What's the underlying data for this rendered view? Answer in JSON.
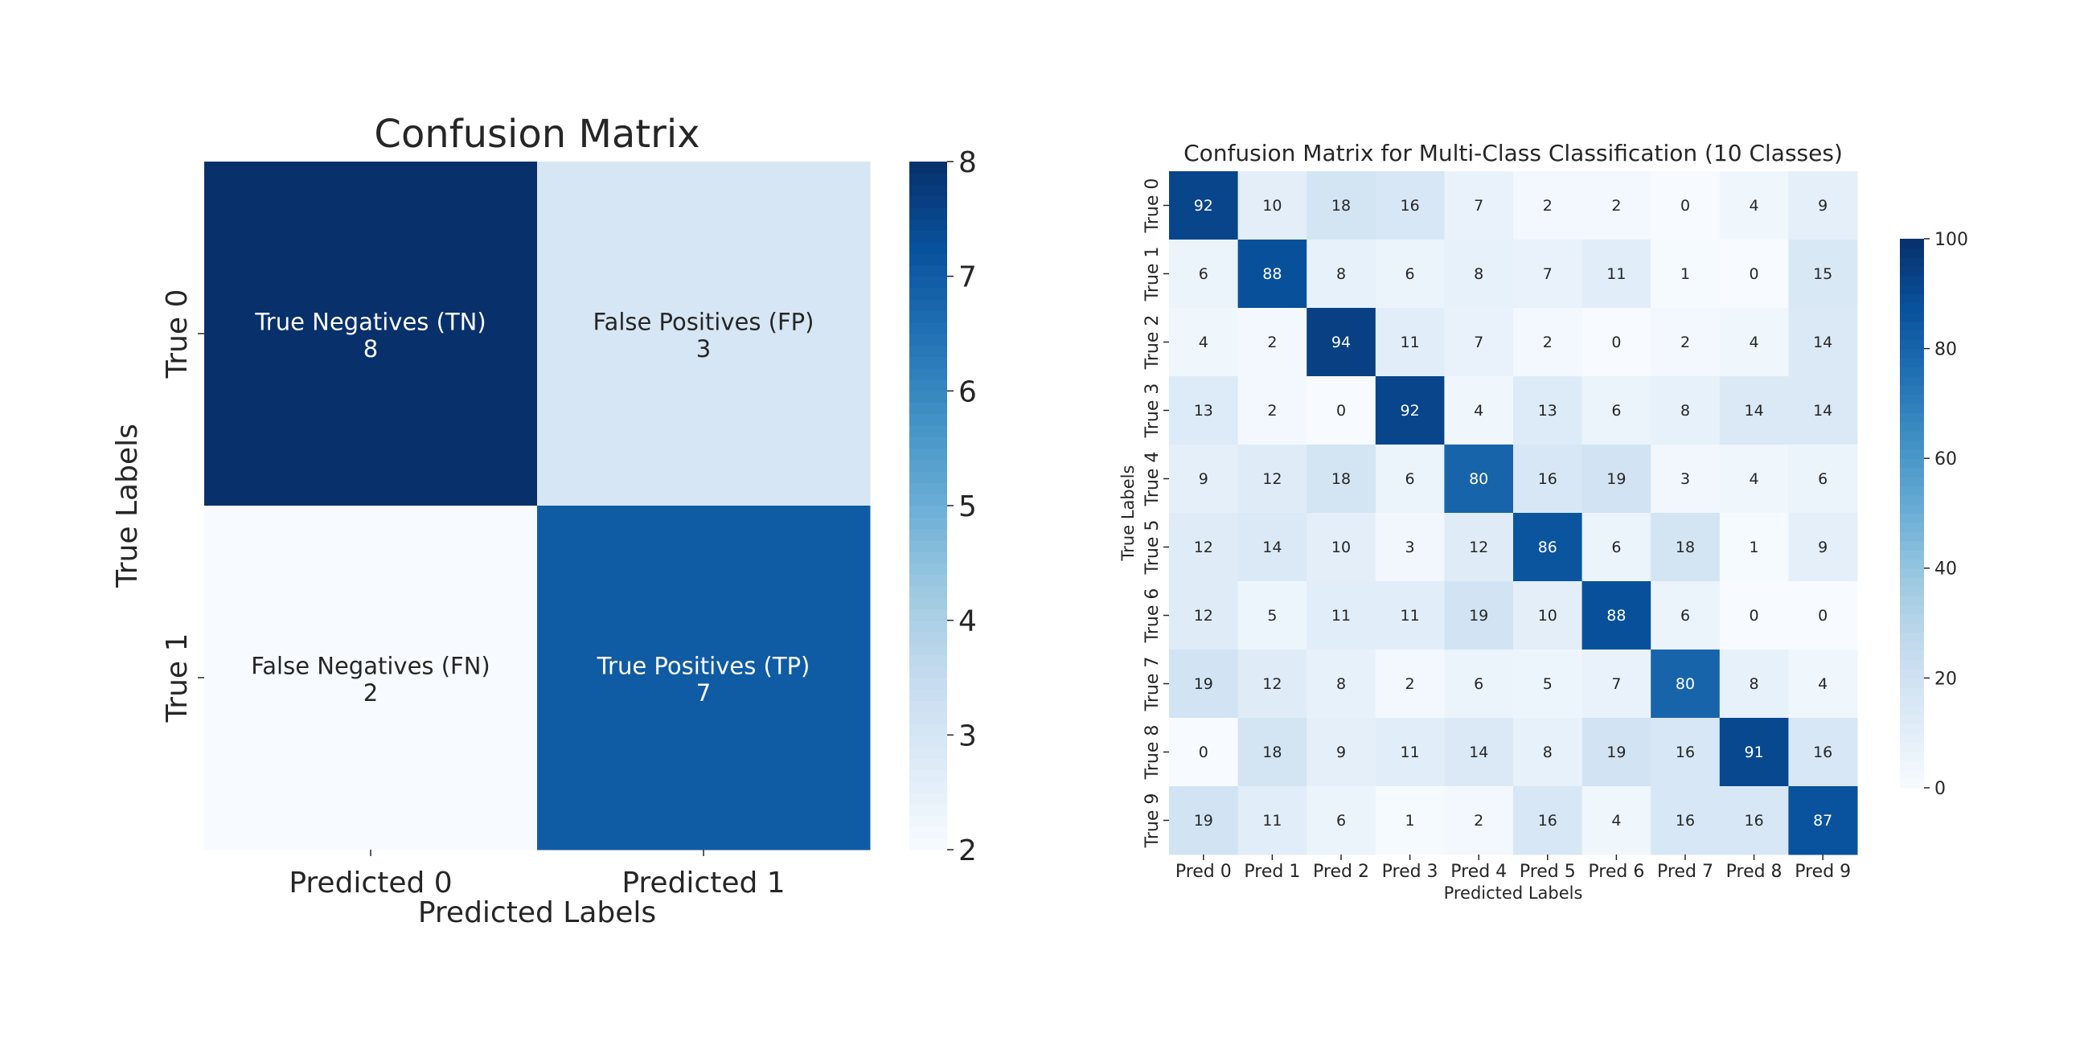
{
  "chart_data": [
    {
      "type": "heatmap",
      "title": "Confusion Matrix",
      "xlabel": "Predicted Labels",
      "ylabel": "True Labels",
      "x_categories": [
        "Predicted 0",
        "Predicted 1"
      ],
      "y_categories": [
        "True 0",
        "True 1"
      ],
      "values": [
        [
          8,
          3
        ],
        [
          2,
          7
        ]
      ],
      "annotations": [
        [
          "True Negatives (TN)\n8",
          "False Positives (FP)\n3"
        ],
        [
          "False Negatives (FN)\n2",
          "True Positives (TP)\n7"
        ]
      ],
      "colormap": "Blues",
      "colorbar": {
        "range": [
          2,
          8
        ],
        "ticks": [
          "2",
          "3",
          "4",
          "5",
          "6",
          "7",
          "8"
        ]
      }
    },
    {
      "type": "heatmap",
      "title": "Confusion Matrix for Multi-Class Classification (10 Classes)",
      "xlabel": "Predicted Labels",
      "ylabel": "True Labels",
      "x_categories": [
        "Pred 0",
        "Pred 1",
        "Pred 2",
        "Pred 3",
        "Pred 4",
        "Pred 5",
        "Pred 6",
        "Pred 7",
        "Pred 8",
        "Pred 9"
      ],
      "y_categories": [
        "True 0",
        "True 1",
        "True 2",
        "True 3",
        "True 4",
        "True 5",
        "True 6",
        "True 7",
        "True 8",
        "True 9"
      ],
      "values": [
        [
          92,
          10,
          18,
          16,
          7,
          2,
          2,
          0,
          4,
          9
        ],
        [
          6,
          88,
          8,
          6,
          8,
          7,
          11,
          1,
          0,
          15
        ],
        [
          4,
          2,
          94,
          11,
          7,
          2,
          0,
          2,
          4,
          14
        ],
        [
          13,
          2,
          0,
          92,
          4,
          13,
          6,
          8,
          14,
          14
        ],
        [
          9,
          12,
          18,
          6,
          80,
          16,
          19,
          3,
          4,
          6
        ],
        [
          12,
          14,
          10,
          3,
          12,
          86,
          6,
          18,
          1,
          9
        ],
        [
          12,
          5,
          11,
          11,
          19,
          10,
          88,
          6,
          0,
          0
        ],
        [
          19,
          12,
          8,
          2,
          6,
          5,
          7,
          80,
          8,
          4
        ],
        [
          0,
          18,
          9,
          11,
          14,
          8,
          19,
          16,
          91,
          16
        ],
        [
          19,
          11,
          6,
          1,
          2,
          16,
          4,
          16,
          16,
          87
        ]
      ],
      "colormap": "Blues",
      "colorbar": {
        "range": [
          0,
          100
        ],
        "ticks": [
          "0",
          "20",
          "40",
          "60",
          "80",
          "100"
        ]
      }
    }
  ]
}
